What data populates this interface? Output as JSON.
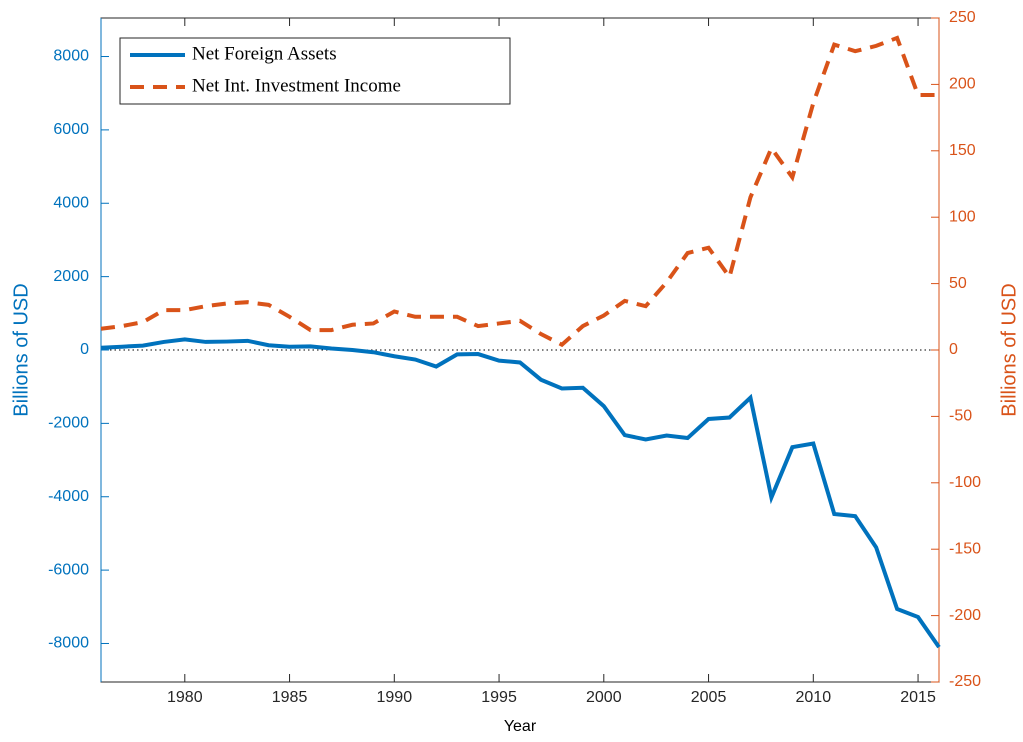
{
  "chart_data": {
    "type": "line",
    "x": [
      1976,
      1977,
      1978,
      1979,
      1980,
      1981,
      1982,
      1983,
      1984,
      1985,
      1986,
      1987,
      1988,
      1989,
      1990,
      1991,
      1992,
      1993,
      1994,
      1995,
      1996,
      1997,
      1998,
      1999,
      2000,
      2001,
      2002,
      2003,
      2004,
      2005,
      2006,
      2007,
      2008,
      2009,
      2010,
      2011,
      2012,
      2013,
      2014,
      2015,
      2016
    ],
    "xlim": [
      1976,
      2016
    ],
    "xticks": [
      1980,
      1985,
      1990,
      1995,
      2000,
      2005,
      2010,
      2015
    ],
    "xlabel": "Year",
    "ylabel": "Billions of USD",
    "y2label": "Billions of USD",
    "ylim": [
      -9050,
      9050
    ],
    "yticks": [
      -8000,
      -6000,
      -4000,
      -2000,
      0,
      2000,
      4000,
      6000,
      8000
    ],
    "y2lim": [
      -250,
      250
    ],
    "y2ticks": [
      -250,
      -200,
      -150,
      -100,
      -50,
      0,
      50,
      100,
      150,
      200,
      250
    ],
    "legend": "upper left",
    "series": [
      {
        "name": "Net Foreign Assets",
        "color": "#0072bd",
        "axis": "y",
        "dash": "solid",
        "values": [
          60,
          90,
          120,
          220,
          290,
          220,
          230,
          250,
          130,
          90,
          100,
          40,
          0,
          -60,
          -170,
          -260,
          -450,
          -120,
          -110,
          -290,
          -340,
          -810,
          -1050,
          -1030,
          -1530,
          -2320,
          -2440,
          -2330,
          -2400,
          -1880,
          -1840,
          -1300,
          -4020,
          -2650,
          -2550,
          -4470,
          -4530,
          -5380,
          -7060,
          -7280,
          -8100
        ]
      },
      {
        "name": "Net Int. Investment Income",
        "color": "#d95319",
        "axis": "y2",
        "dash": "dashed",
        "values": [
          16,
          18,
          21,
          30,
          30,
          33,
          35,
          36,
          34,
          25,
          15,
          15,
          19,
          20,
          29,
          25,
          25,
          25,
          18,
          20,
          22,
          12,
          4,
          18,
          26,
          37,
          33,
          51,
          73,
          77,
          55,
          115,
          152,
          130,
          186,
          230,
          225,
          229,
          235,
          192,
          192
        ]
      }
    ]
  }
}
